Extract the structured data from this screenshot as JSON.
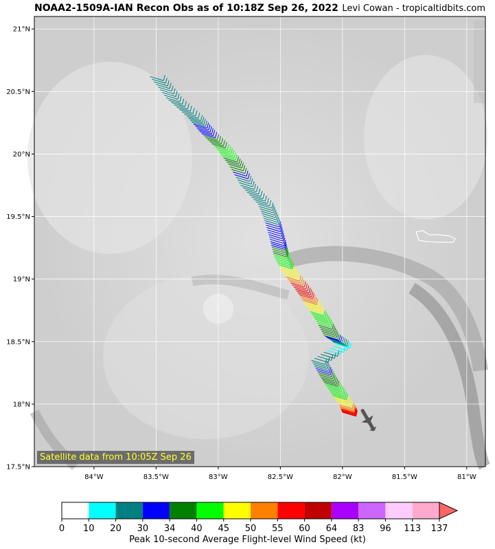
{
  "header": {
    "title": "NOAA2-1509A-IAN Recon Obs as of 10:18Z Sep 26, 2022",
    "credit": "Levi Cowan - tropicaltidbits.com"
  },
  "map": {
    "lat_range": [
      17.5,
      21.1
    ],
    "lon_range": [
      -84.48,
      -80.85
    ],
    "lat_ticks": [
      "21°N",
      "20.5°N",
      "20°N",
      "19.5°N",
      "19°N",
      "18.5°N",
      "18°N",
      "17.5°N"
    ],
    "lat_values": [
      21.0,
      20.5,
      20.0,
      19.5,
      19.0,
      18.5,
      18.0,
      17.5
    ],
    "lon_ticks": [
      "84°W",
      "83.5°W",
      "83°W",
      "82.5°W",
      "82°W",
      "81.5°W",
      "81°W"
    ],
    "lon_values": [
      -84.0,
      -83.5,
      -83.0,
      -82.5,
      -82.0,
      -81.5,
      -81.0
    ],
    "satellite_caption": "Satellite data from 10:05Z Sep 26"
  },
  "colorbar": {
    "label": "Peak 10-second Average Flight-level Wind Speed (kt)",
    "ticks": [
      "0",
      "10",
      "20",
      "30",
      "34",
      "40",
      "45",
      "50",
      "55",
      "60",
      "64",
      "83",
      "96",
      "113",
      "137"
    ],
    "colors": [
      "#ffffff",
      "#00ffff",
      "#008080",
      "#0000ff",
      "#008000",
      "#00ff00",
      "#ffff00",
      "#ff8000",
      "#ff0000",
      "#c00000",
      "#aa00ff",
      "#cc66ff",
      "#ffccff",
      "#ffaacc"
    ],
    "extend_color": "#ff6666"
  },
  "chart_data": {
    "type": "scatter",
    "title": "NOAA2-1509A-IAN Recon Obs as of 10:18Z Sep 26, 2022",
    "xlabel": "",
    "ylabel": "",
    "flight_track_obs": [
      {
        "lat": 20.62,
        "lon": -83.55,
        "wind_kt": 25
      },
      {
        "lat": 20.45,
        "lon": -83.42,
        "wind_kt": 25
      },
      {
        "lat": 20.3,
        "lon": -83.25,
        "wind_kt": 28
      },
      {
        "lat": 20.18,
        "lon": -83.15,
        "wind_kt": 32
      },
      {
        "lat": 20.05,
        "lon": -83.02,
        "wind_kt": 42
      },
      {
        "lat": 19.92,
        "lon": -82.92,
        "wind_kt": 38
      },
      {
        "lat": 19.75,
        "lon": -82.82,
        "wind_kt": 25
      },
      {
        "lat": 19.6,
        "lon": -82.68,
        "wind_kt": 25
      },
      {
        "lat": 19.45,
        "lon": -82.62,
        "wind_kt": 30
      },
      {
        "lat": 19.3,
        "lon": -82.58,
        "wind_kt": 30
      },
      {
        "lat": 19.18,
        "lon": -82.55,
        "wind_kt": 42
      },
      {
        "lat": 19.05,
        "lon": -82.48,
        "wind_kt": 47
      },
      {
        "lat": 18.92,
        "lon": -82.38,
        "wind_kt": 60
      },
      {
        "lat": 18.8,
        "lon": -82.3,
        "wind_kt": 47
      },
      {
        "lat": 18.68,
        "lon": -82.22,
        "wind_kt": 42
      },
      {
        "lat": 18.55,
        "lon": -82.15,
        "wind_kt": 36
      },
      {
        "lat": 18.48,
        "lon": -82.05,
        "wind_kt": 15
      },
      {
        "lat": 18.35,
        "lon": -82.25,
        "wind_kt": 25
      },
      {
        "lat": 18.22,
        "lon": -82.18,
        "wind_kt": 38
      },
      {
        "lat": 18.1,
        "lon": -82.1,
        "wind_kt": 42
      },
      {
        "lat": 17.98,
        "lon": -82.02,
        "wind_kt": 52
      },
      {
        "lat": 17.93,
        "lon": -82.0,
        "wind_kt": 62
      }
    ]
  }
}
